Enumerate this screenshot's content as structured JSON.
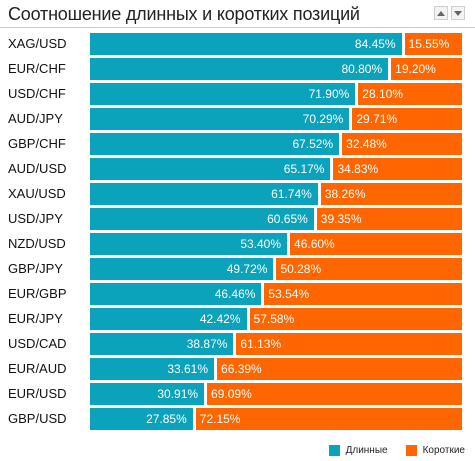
{
  "title": "Соотношение длинных и коротких позиций",
  "colors": {
    "long": "#0aa3bb",
    "short": "#ff6600"
  },
  "legend": {
    "long_label": "Длинные",
    "short_label": "Короткие"
  },
  "chart_data": {
    "type": "bar",
    "stacked": true,
    "orientation": "horizontal",
    "categories": [
      "XAG/USD",
      "EUR/CHF",
      "USD/CHF",
      "AUD/JPY",
      "GBP/CHF",
      "AUD/USD",
      "XAU/USD",
      "USD/JPY",
      "NZD/USD",
      "GBP/JPY",
      "EUR/GBP",
      "EUR/JPY",
      "USD/CAD",
      "EUR/AUD",
      "EUR/USD",
      "GBP/USD"
    ],
    "series": [
      {
        "name": "Длинные",
        "values": [
          84.45,
          80.8,
          71.9,
          70.29,
          67.52,
          65.17,
          61.74,
          60.65,
          53.4,
          49.72,
          46.46,
          42.42,
          38.87,
          33.61,
          30.91,
          27.85
        ],
        "labels": [
          "84.45%",
          "80.80%",
          "71.90%",
          "70.29%",
          "67.52%",
          "65.17%",
          "61.74%",
          "60.65%",
          "53.40%",
          "49.72%",
          "46.46%",
          "42.42%",
          "38.87%",
          "33.61%",
          "30.91%",
          "27.85%"
        ]
      },
      {
        "name": "Короткие",
        "values": [
          15.55,
          19.2,
          28.1,
          29.71,
          32.48,
          34.83,
          38.26,
          39.35,
          46.6,
          50.28,
          53.54,
          57.58,
          61.13,
          66.39,
          69.09,
          72.15
        ],
        "labels": [
          "15.55%",
          "19.20%",
          "28.10%",
          "29.71%",
          "32.48%",
          "34.83%",
          "38.26%",
          "39.35%",
          "46.60%",
          "50.28%",
          "53.54%",
          "57.58%",
          "61.13%",
          "66.39%",
          "69.09%",
          "72.15%"
        ]
      }
    ],
    "xlim": [
      0,
      100
    ],
    "legend_position": "bottom-right"
  }
}
